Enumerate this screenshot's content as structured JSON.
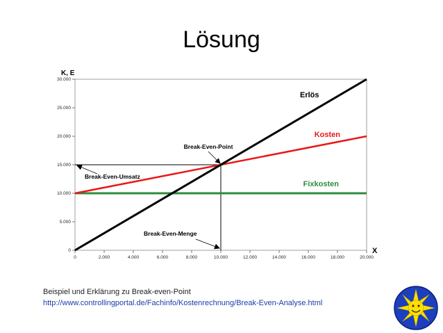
{
  "title": "Lösung",
  "caption": {
    "text": "Beispiel und Erklärung zu Break-even-Point",
    "url": "http://www.controllingportal.de/Fachinfo/Kostenrechnung/Break-Even-Analyse.html"
  },
  "chart_data": {
    "type": "line",
    "title": "",
    "xlabel": "X",
    "ylabel": "K, E",
    "xlim": [
      0,
      20000
    ],
    "ylim": [
      0,
      30000
    ],
    "x_ticks": [
      0,
      2000,
      4000,
      6000,
      8000,
      10000,
      12000,
      14000,
      16000,
      18000,
      20000
    ],
    "x_tick_labels": [
      "0",
      "2.000",
      "4.000",
      "6.000",
      "8.000",
      "10.000",
      "12.000",
      "14.000",
      "16.000",
      "18.000",
      "20.000"
    ],
    "y_ticks": [
      0,
      5000,
      10000,
      15000,
      20000,
      25000,
      30000
    ],
    "y_tick_labels": [
      "0",
      "5.000",
      "10.000",
      "15.000",
      "20.000",
      "25.000",
      "30.000"
    ],
    "series": [
      {
        "name": "Erlös",
        "color": "#000000",
        "x": [
          0,
          20000
        ],
        "y": [
          0,
          30000
        ]
      },
      {
        "name": "Kosten",
        "color": "#e81818",
        "x": [
          0,
          20000
        ],
        "y": [
          10000,
          20000
        ]
      },
      {
        "name": "Fixkosten",
        "color": "#2e8b3e",
        "x": [
          0,
          20000
        ],
        "y": [
          10000,
          10000
        ]
      }
    ],
    "break_even_point": {
      "x": 10000,
      "y": 15000
    },
    "annotations": [
      {
        "id": "bep",
        "text": "Break-Even-Point"
      },
      {
        "id": "umsatz",
        "text": "Break-Even-Umsatz"
      },
      {
        "id": "menge",
        "text": "Break-Even-Menge"
      }
    ]
  }
}
